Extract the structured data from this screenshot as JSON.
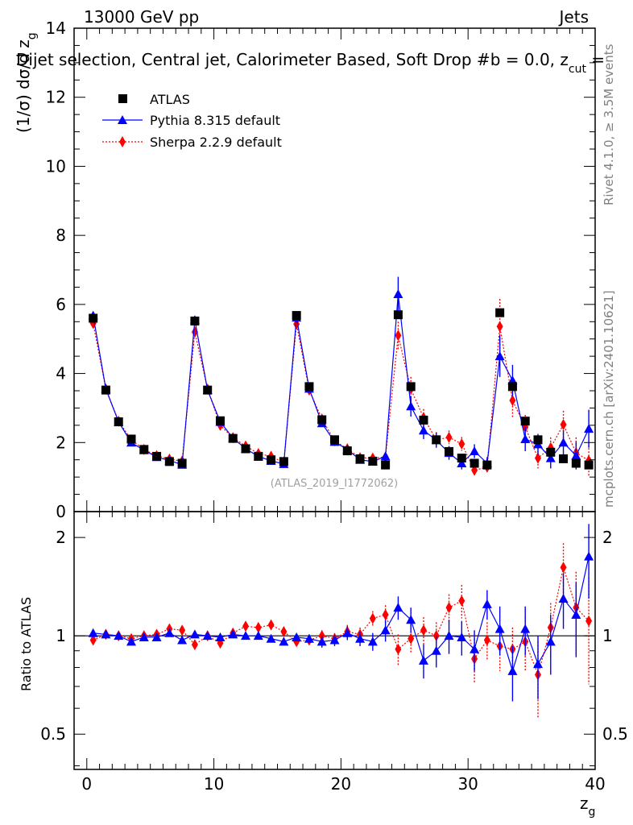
{
  "header": {
    "left": "13000 GeV pp",
    "right": "Jets",
    "title": "Dijet selection, Central jet, Calorimeter Based, Soft Drop #b = 0.0, z",
    "title_sub": "cut",
    "title_end": " ="
  },
  "side": {
    "rivet": "Rivet 4.1.0, ≥ 3.5M events",
    "mcplots": "mcplots.cern.ch [arXiv:2401.10621]"
  },
  "watermark": "(ATLAS_2019_I1772062)",
  "axes": {
    "ylabel_main": "(1/σ) dσ/d z",
    "ylabel_main_sub": "g",
    "ylabel_ratio": "Ratio to ATLAS",
    "xlabel": "z",
    "xlabel_sub": "g"
  },
  "legend": [
    {
      "name": "ATLAS",
      "color": "#000000",
      "marker": "square"
    },
    {
      "name": "Pythia 8.315 default",
      "color": "#0000ff",
      "marker": "triangle"
    },
    {
      "name": "Sherpa 2.2.9 default",
      "color": "#ff0000",
      "marker": "diamond"
    }
  ],
  "chart_data": {
    "type": "line",
    "xlim": [
      -1,
      40
    ],
    "x_ticks": [
      0,
      10,
      20,
      30,
      40
    ],
    "main": {
      "ylim": [
        0,
        14
      ],
      "y_ticks": [
        0,
        2,
        4,
        6,
        8,
        10,
        12,
        14
      ]
    },
    "ratio": {
      "ylim": [
        0.39,
        2.4
      ],
      "log": true,
      "y_ticks": [
        0.5,
        1,
        2
      ],
      "y_tick_labels": [
        "0.5",
        "1",
        "2"
      ]
    },
    "x": [
      0.5,
      1.5,
      2.5,
      3.5,
      4.5,
      5.5,
      6.5,
      7.5,
      8.5,
      9.5,
      10.5,
      11.5,
      12.5,
      13.5,
      14.5,
      15.5,
      16.5,
      17.5,
      18.5,
      19.5,
      20.5,
      21.5,
      22.5,
      23.5,
      24.5,
      25.5,
      26.5,
      27.5,
      28.5,
      29.5,
      30.5,
      31.5,
      32.5,
      33.5,
      34.5,
      35.5,
      36.5,
      37.5,
      38.5,
      39.5
    ],
    "series": [
      {
        "name": "ATLAS",
        "values": [
          5.6,
          3.52,
          2.6,
          2.1,
          1.8,
          1.6,
          1.45,
          1.4,
          5.52,
          3.52,
          2.63,
          2.12,
          1.82,
          1.6,
          1.5,
          1.45,
          5.68,
          3.62,
          2.66,
          2.08,
          1.76,
          1.53,
          1.46,
          1.35,
          5.7,
          3.62,
          2.65,
          2.08,
          1.74,
          1.55,
          1.4,
          1.35,
          5.76,
          3.62,
          2.62,
          2.08,
          1.72,
          1.53,
          1.4,
          1.35
        ]
      },
      {
        "name": "Pythia 8.315 default",
        "values": [
          5.68,
          3.55,
          2.6,
          2.0,
          1.78,
          1.58,
          1.48,
          1.36,
          5.55,
          3.52,
          2.6,
          2.13,
          1.82,
          1.6,
          1.47,
          1.38,
          5.62,
          3.56,
          2.56,
          2.02,
          1.8,
          1.5,
          1.45,
          1.6,
          6.3,
          3.05,
          2.35,
          2.07,
          1.7,
          1.4,
          1.75,
          1.4,
          4.5,
          3.8,
          2.1,
          1.95,
          1.55,
          2.0,
          1.62,
          2.4
        ],
        "errors": [
          0.05,
          0.04,
          0.04,
          0.04,
          0.04,
          0.04,
          0.04,
          0.04,
          0.05,
          0.04,
          0.04,
          0.04,
          0.04,
          0.04,
          0.04,
          0.04,
          0.05,
          0.05,
          0.06,
          0.07,
          0.08,
          0.08,
          0.09,
          0.11,
          0.5,
          0.3,
          0.25,
          0.22,
          0.2,
          0.18,
          0.2,
          0.18,
          0.6,
          0.45,
          0.35,
          0.3,
          0.3,
          0.35,
          0.4,
          0.55
        ]
      },
      {
        "name": "Sherpa 2.2.9 default",
        "values": [
          5.45,
          3.55,
          2.62,
          2.08,
          1.8,
          1.62,
          1.52,
          1.46,
          5.2,
          3.55,
          2.5,
          2.14,
          1.9,
          1.68,
          1.6,
          1.42,
          5.43,
          3.52,
          2.68,
          2.05,
          1.82,
          1.56,
          1.55,
          1.58,
          5.1,
          3.55,
          2.72,
          2.08,
          2.15,
          1.96,
          1.2,
          1.29,
          5.36,
          3.22,
          2.45,
          1.55,
          1.85,
          2.52,
          1.7,
          1.48
        ],
        "errors": [
          0.05,
          0.04,
          0.04,
          0.04,
          0.04,
          0.04,
          0.04,
          0.04,
          0.05,
          0.04,
          0.04,
          0.04,
          0.04,
          0.04,
          0.04,
          0.04,
          0.05,
          0.05,
          0.06,
          0.07,
          0.08,
          0.08,
          0.09,
          0.11,
          0.4,
          0.35,
          0.25,
          0.22,
          0.2,
          0.2,
          0.18,
          0.18,
          0.8,
          0.5,
          0.35,
          0.3,
          0.3,
          0.4,
          0.45,
          0.45
        ]
      }
    ],
    "ratios": [
      {
        "name": "Pythia 8.315 default",
        "values": [
          1.02,
          1.01,
          1.0,
          0.96,
          0.99,
          0.99,
          1.02,
          0.97,
          1.01,
          1.0,
          0.99,
          1.01,
          1.0,
          1.0,
          0.98,
          0.96,
          0.99,
          0.98,
          0.96,
          0.97,
          1.02,
          0.98,
          0.96,
          1.04,
          1.22,
          1.12,
          0.84,
          0.9,
          1.0,
          0.99,
          0.91,
          1.25,
          1.05,
          0.78,
          1.05,
          0.82,
          0.96,
          1.3,
          1.16,
          1.75
        ],
        "errors": [
          0.02,
          0.02,
          0.02,
          0.02,
          0.02,
          0.02,
          0.02,
          0.02,
          0.02,
          0.02,
          0.02,
          0.02,
          0.02,
          0.02,
          0.02,
          0.02,
          0.02,
          0.03,
          0.04,
          0.04,
          0.05,
          0.05,
          0.06,
          0.08,
          0.1,
          0.1,
          0.1,
          0.1,
          0.12,
          0.12,
          0.13,
          0.13,
          0.18,
          0.15,
          0.18,
          0.18,
          0.2,
          0.25,
          0.3,
          0.45
        ]
      },
      {
        "name": "Sherpa 2.2.9 default",
        "values": [
          0.97,
          1.01,
          1.0,
          0.98,
          1.0,
          1.01,
          1.05,
          1.04,
          0.94,
          1.0,
          0.95,
          1.02,
          1.07,
          1.06,
          1.08,
          1.03,
          0.96,
          0.97,
          1.0,
          0.98,
          1.03,
          1.01,
          1.13,
          1.16,
          0.91,
          0.98,
          1.04,
          1.0,
          1.22,
          1.28,
          0.85,
          0.97,
          0.93,
          0.91,
          0.96,
          0.76,
          1.06,
          1.62,
          1.22,
          1.11
        ],
        "errors": [
          0.02,
          0.02,
          0.02,
          0.02,
          0.02,
          0.02,
          0.02,
          0.02,
          0.02,
          0.02,
          0.02,
          0.02,
          0.02,
          0.02,
          0.02,
          0.02,
          0.02,
          0.03,
          0.04,
          0.04,
          0.05,
          0.05,
          0.06,
          0.08,
          0.1,
          0.1,
          0.1,
          0.1,
          0.12,
          0.15,
          0.13,
          0.13,
          0.15,
          0.15,
          0.18,
          0.2,
          0.2,
          0.3,
          0.35,
          0.4
        ]
      }
    ]
  }
}
